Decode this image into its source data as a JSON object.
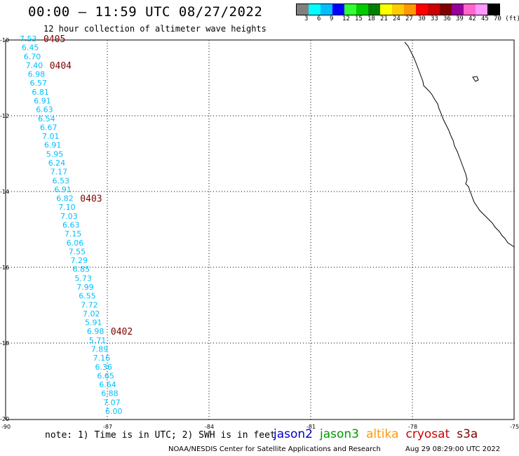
{
  "title": "00:00 – 11:59 UTC 08/27/2022",
  "subtitle": "12 hour collection of altimeter wave heights",
  "colorbar": {
    "colors": [
      "#808080",
      "#00ffff",
      "#00bfff",
      "#0000ff",
      "#33ff33",
      "#00cc00",
      "#008000",
      "#ffff00",
      "#ffcc00",
      "#ff9900",
      "#ff0000",
      "#cc0000",
      "#800000",
      "#990099",
      "#ff66cc",
      "#ff99ff",
      "#000000"
    ],
    "labels": [
      "3",
      "6",
      "9",
      "12",
      "15",
      "18",
      "21",
      "24",
      "27",
      "30",
      "33",
      "36",
      "39",
      "42",
      "45",
      "70 (ft)"
    ]
  },
  "axes": {
    "lon_ticks": [
      "-90",
      "-87",
      "-84",
      "-81",
      "-78",
      "-75"
    ],
    "lat_ticks": [
      "-10",
      "-12",
      "-14",
      "-16",
      "-18",
      "-20"
    ]
  },
  "track": {
    "color": "#00bfff",
    "values": [
      "7.53",
      "6.45",
      "6.70",
      "7.40",
      "6.98",
      "6.57",
      "6.81",
      "6.91",
      "6.63",
      "6.54",
      "6.67",
      "7.01",
      "6.91",
      "5.95",
      "6.24",
      "7.17",
      "6.53",
      "6.91",
      "6.82",
      "7.10",
      "7.03",
      "6.63",
      "7.15",
      "6.06",
      "7.55",
      "7.29",
      "6.85",
      "5.73",
      "7.99",
      "6.55",
      "7.72",
      "7.02",
      "5.91",
      "6.98",
      "5.71",
      "7.89",
      "7.16",
      "6.36",
      "6.65",
      "6.64",
      "6.88",
      "7.07",
      "6.00"
    ]
  },
  "time_labels": {
    "color": "#800000",
    "items": [
      "0405",
      "0404",
      "0403",
      "0402"
    ]
  },
  "note": "note:  1) Time is in UTC; 2) SWH is in feet",
  "satellites": [
    {
      "name": "jason2",
      "color": "#0000cc"
    },
    {
      "name": "jason3",
      "color": "#009900"
    },
    {
      "name": "altika",
      "color": "#ff9900"
    },
    {
      "name": "cryosat",
      "color": "#cc0000"
    },
    {
      "name": "s3a",
      "color": "#800000"
    }
  ],
  "footer": {
    "agency": "NOAA/NESDIS Center for Satellite Applications and Research",
    "timestamp": "Aug 29 08:29:00 UTC 2022"
  }
}
